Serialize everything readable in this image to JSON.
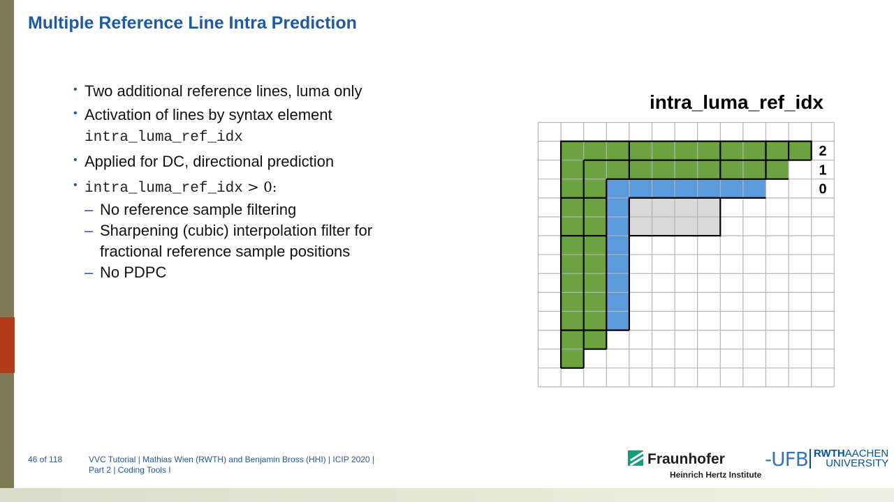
{
  "slide": {
    "title": "Multiple Reference Line Intra Prediction"
  },
  "bullets": {
    "b1": "Two additional reference lines, luma only",
    "b2": "Activation of lines by syntax element",
    "b2_code": "intra_luma_ref_idx",
    "b3": "Applied for DC, directional prediction",
    "b4_code": "intra_luma_ref_idx",
    "b4_op": "> 0:",
    "sub1": "No reference sample filtering",
    "sub2_line1": "Sharpening (cubic) interpolation filter for",
    "sub2_line2": "fractional reference sample positions",
    "sub3": "No PDPC",
    "bullet_glyph": "•",
    "dash_glyph": "–"
  },
  "figure": {
    "title": "intra_luma_ref_idx",
    "line_labels": [
      "2",
      "1",
      "0"
    ],
    "colors": {
      "green": "#6aa33f",
      "blue": "#5b9bdb",
      "block": "#d9d9d9",
      "grid": "#b5b5b5",
      "bold": "#000000"
    }
  },
  "footer": {
    "page": "46 of 118",
    "line1": "VVC Tutorial  |  Mathias Wien (RWTH) and Benjamin Bross (HHI)  |  ICIP 2020  |",
    "line2": "Part 2  |  Coding Tools I"
  },
  "logos": {
    "fraunhofer_name": "Fraunhofer",
    "fraunhofer_sub": "Heinrich Hertz Institute",
    "ufb": "-UFB",
    "rwth_bold": "RWTH",
    "rwth_light": "AACHEN",
    "rwth_bottom": "UNIVERSITY"
  }
}
